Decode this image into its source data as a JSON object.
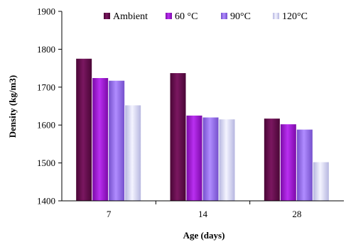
{
  "chart_data": {
    "type": "bar",
    "title": "",
    "xlabel": "Age (days)",
    "ylabel": "Density (kg/m3)",
    "ylim": [
      1400,
      1900
    ],
    "yticks": [
      1400,
      1500,
      1600,
      1700,
      1800,
      1900
    ],
    "categories": [
      "7",
      "14",
      "28"
    ],
    "grid": false,
    "legend_position": "top",
    "series": [
      {
        "name": "Ambient",
        "values": [
          1775,
          1737,
          1617
        ],
        "color": "#6a0a4e"
      },
      {
        "name": "60 °C",
        "values": [
          1724,
          1625,
          1602
        ],
        "color": "#a313d6"
      },
      {
        "name": "90°C",
        "values": [
          1717,
          1620,
          1588
        ],
        "color": "#9b6ef0"
      },
      {
        "name": "120°C",
        "values": [
          1652,
          1615,
          1502
        ],
        "color": "#d8d8f6"
      }
    ]
  }
}
